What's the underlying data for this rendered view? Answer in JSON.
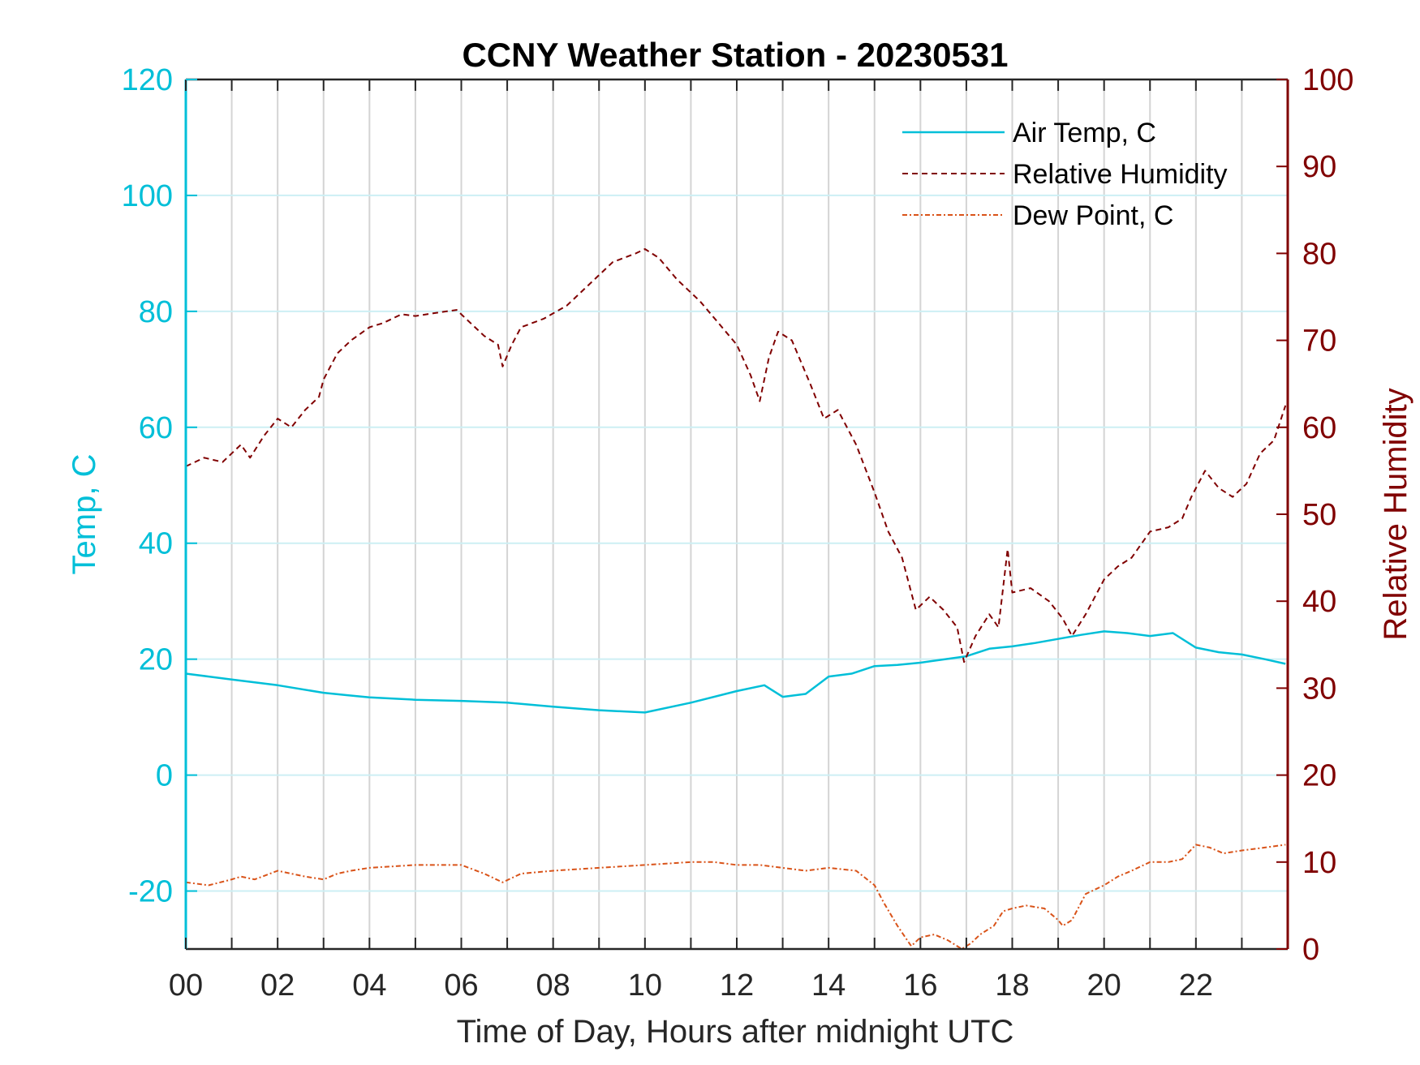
{
  "colors": {
    "temp_axis": "#00BFD8",
    "rh_axis": "#800000",
    "air_temp": "#00BFD8",
    "relative_humidity": "#800000",
    "dew_point": "#D95319",
    "grid_vertical": "#d4d4d4",
    "grid_horizontal": "#cdeff4"
  },
  "chart_data": {
    "type": "line",
    "title": "CCNY Weather Station - 20230531",
    "xlabel": "Time of Day, Hours after midnight UTC",
    "ylabel_left": "Temp, C",
    "ylabel_right": "Relative Humidity",
    "xlim": [
      0,
      24
    ],
    "ylim_left": [
      -30,
      120
    ],
    "ylim_right": [
      0,
      100
    ],
    "x_ticks": [
      "00",
      "02",
      "04",
      "06",
      "08",
      "10",
      "12",
      "14",
      "16",
      "18",
      "20",
      "22"
    ],
    "y_left_ticks": [
      "-20",
      "0",
      "20",
      "40",
      "60",
      "80",
      "100",
      "120"
    ],
    "y_right_ticks": [
      "0",
      "10",
      "20",
      "30",
      "40",
      "50",
      "60",
      "70",
      "80",
      "90",
      "100"
    ],
    "grid": "vertical every hour, horizontal at left ticks",
    "legend_position": "top-right",
    "series": [
      {
        "name": "Air Temp, C",
        "axis": "left",
        "style": "solid",
        "x": [
          0,
          0.5,
          1,
          2,
          3,
          3.5,
          4,
          5,
          6,
          7,
          8,
          9,
          10,
          11,
          12,
          12.6,
          13,
          13.5,
          14,
          14.5,
          15,
          15.5,
          16,
          17,
          17.5,
          18,
          18.5,
          19,
          19.5,
          20,
          20.5,
          21,
          21.5,
          22,
          22.5,
          23,
          23.5,
          23.95
        ],
        "values": [
          17.5,
          17,
          16.5,
          15.5,
          14.2,
          13.8,
          13.4,
          13,
          12.8,
          12.5,
          11.8,
          11.2,
          10.8,
          12.5,
          14.5,
          15.5,
          13.5,
          14,
          17,
          17.5,
          18.8,
          19,
          19.4,
          20.5,
          21.8,
          22.2,
          22.8,
          23.5,
          24.2,
          24.8,
          24.5,
          24,
          24.5,
          22,
          21.2,
          20.8,
          20,
          19.2
        ]
      },
      {
        "name": "Relative Humidity",
        "axis": "right",
        "style": "dashed",
        "x": [
          0,
          0.4,
          0.8,
          1.2,
          1.4,
          1.7,
          2,
          2.3,
          2.6,
          2.9,
          3,
          3.3,
          3.6,
          4,
          4.3,
          4.7,
          5,
          5.5,
          5.9,
          6.2,
          6.5,
          6.8,
          6.9,
          7.1,
          7.3,
          7.8,
          8.3,
          8.8,
          9.3,
          9.8,
          10,
          10.3,
          10.7,
          11.2,
          11.6,
          12,
          12.3,
          12.5,
          12.7,
          12.9,
          13.2,
          13.6,
          13.9,
          14.2,
          14.6,
          15,
          15.3,
          15.6,
          15.9,
          16.2,
          16.5,
          16.8,
          16.95,
          17.2,
          17.5,
          17.7,
          17.9,
          18,
          18.4,
          18.8,
          19.1,
          19.3,
          19.6,
          20,
          20.3,
          20.6,
          21,
          21.4,
          21.7,
          21.9,
          22.2,
          22.5,
          22.8,
          23.1,
          23.4,
          23.7,
          23.95
        ],
        "values": [
          55.5,
          56.5,
          56,
          58,
          56.5,
          59,
          61,
          60,
          62,
          63.5,
          65.5,
          68.5,
          70,
          71.5,
          72,
          73,
          72.8,
          73.2,
          73.5,
          72,
          70.5,
          69.5,
          67,
          69.5,
          71.5,
          72.5,
          74,
          76.5,
          79,
          80,
          80.5,
          79.5,
          77,
          74.5,
          72,
          69.5,
          66,
          63,
          68,
          71,
          70,
          65,
          61,
          62,
          58,
          52.5,
          48,
          45,
          39,
          40.5,
          39,
          37,
          33,
          36,
          38.5,
          37,
          46,
          41,
          41.5,
          40,
          38,
          36,
          38.5,
          42.5,
          44,
          45,
          48,
          48.5,
          49.5,
          52,
          55,
          53,
          52,
          53.5,
          57,
          58.5,
          62.5
        ]
      },
      {
        "name": "Dew Point, C",
        "axis": "left",
        "style": "dashdot",
        "x": [
          0,
          0.5,
          1,
          1.2,
          1.5,
          2,
          2.3,
          2.6,
          3,
          3.3,
          3.6,
          4,
          5,
          6,
          6.5,
          6.9,
          7.3,
          8,
          9,
          10,
          11,
          11.5,
          12,
          12.5,
          13,
          13.5,
          14,
          14.6,
          15,
          15.2,
          15.5,
          15.8,
          16,
          16.3,
          16.6,
          16.9,
          17.1,
          17.3,
          17.6,
          17.8,
          18,
          18.3,
          18.7,
          19,
          19.1,
          19.3,
          19.6,
          20,
          20.3,
          20.6,
          21,
          21.4,
          21.7,
          22,
          22.3,
          22.6,
          23,
          23.5,
          23.95
        ],
        "values": [
          -18.5,
          -19,
          -18,
          -17.5,
          -18,
          -16.5,
          -17,
          -17.5,
          -18,
          -17,
          -16.5,
          -16,
          -15.5,
          -15.5,
          -17,
          -18.5,
          -17,
          -16.5,
          -16,
          -15.5,
          -15,
          -15,
          -15.5,
          -15.5,
          -16,
          -16.5,
          -16,
          -16.5,
          -19,
          -22,
          -26,
          -29.5,
          -28,
          -27.5,
          -28.5,
          -30,
          -29,
          -27.5,
          -26,
          -23.5,
          -23,
          -22.5,
          -23,
          -25,
          -26,
          -25,
          -20.5,
          -19,
          -17.5,
          -16.5,
          -15,
          -15,
          -14.5,
          -12,
          -12.5,
          -13.5,
          -13,
          -12.5,
          -12
        ]
      }
    ]
  }
}
